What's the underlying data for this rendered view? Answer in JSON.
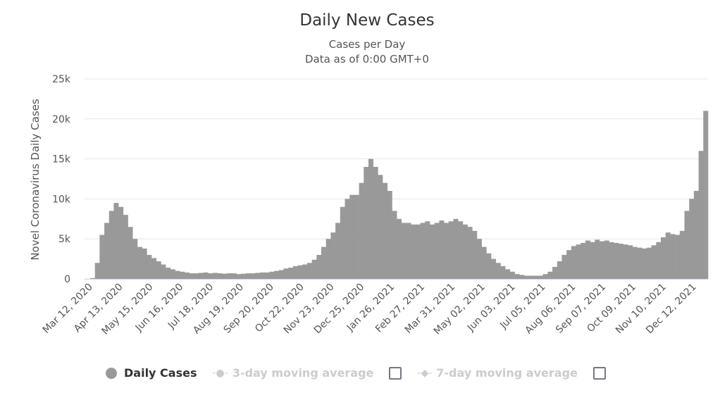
{
  "chart_data": {
    "type": "bar",
    "title": "Daily New Cases",
    "subtitle": "Cases per Day",
    "subtitle2": "Data as of 0:00 GMT+0",
    "ylabel": "Novel Coronavirus Daily Cases",
    "xlabel": "",
    "ylim": [
      0,
      25000
    ],
    "yticks": [
      0,
      5000,
      10000,
      15000,
      20000,
      25000
    ],
    "ytick_labels": [
      "0",
      "5k",
      "10k",
      "15k",
      "20k",
      "25k"
    ],
    "x_start": "Mar 12, 2020",
    "x_step_days": 5,
    "total_days": 655,
    "xtick_step_days": 32,
    "xtick_labels": [
      "Mar 12, 2020",
      "Apr 13, 2020",
      "May 15, 2020",
      "Jun 16, 2020",
      "Jul 18, 2020",
      "Aug 19, 2020",
      "Sep 20, 2020",
      "Oct 22, 2020",
      "Nov 23, 2020",
      "Dec 25, 2020",
      "Jan 26, 2021",
      "Feb 27, 2021",
      "Mar 31, 2021",
      "May 02, 2021",
      "Jun 03, 2021",
      "Jul 05, 2021",
      "Aug 06, 2021",
      "Sep 07, 2021",
      "Oct 09, 2021",
      "Nov 10, 2021",
      "Dec 12, 2021"
    ],
    "grid": true,
    "legend_position": "bottom",
    "bar_color": "#999999",
    "series": [
      {
        "name": "Daily Cases",
        "values": [
          100,
          2000,
          5500,
          7000,
          8500,
          9500,
          9000,
          8000,
          6500,
          5000,
          4000,
          3800,
          3000,
          2600,
          2200,
          1800,
          1400,
          1200,
          1000,
          900,
          800,
          700,
          700,
          750,
          800,
          700,
          750,
          700,
          650,
          700,
          700,
          600,
          650,
          700,
          700,
          750,
          800,
          800,
          900,
          1000,
          1100,
          1300,
          1400,
          1600,
          1700,
          1800,
          2000,
          2400,
          3000,
          4000,
          5000,
          5800,
          7000,
          9000,
          10000,
          10500,
          10500,
          12000,
          14000,
          15000,
          14000,
          13000,
          12000,
          11000,
          8500,
          7500,
          7000,
          7000,
          6800,
          6800,
          7000,
          7200,
          6800,
          7000,
          7300,
          7000,
          7200,
          7500,
          7200,
          6800,
          6500,
          6000,
          5000,
          4000,
          3200,
          2500,
          2000,
          1600,
          1200,
          900,
          600,
          500,
          400,
          400,
          400,
          400,
          600,
          900,
          1500,
          2200,
          3000,
          3600,
          4100,
          4300,
          4500,
          4800,
          4600,
          4900,
          4700,
          4800,
          4600,
          4500,
          4400,
          4300,
          4200,
          4000,
          3900,
          3800,
          3900,
          4200,
          4600,
          5200,
          5800,
          5600,
          5500,
          6000,
          8500,
          10000,
          11000,
          16000,
          21000
        ]
      }
    ]
  },
  "legend": {
    "items": [
      {
        "label": "Daily Cases",
        "active": true
      },
      {
        "label": "3-day moving average",
        "active": false
      },
      {
        "label": "7-day moving average",
        "active": false
      }
    ]
  }
}
